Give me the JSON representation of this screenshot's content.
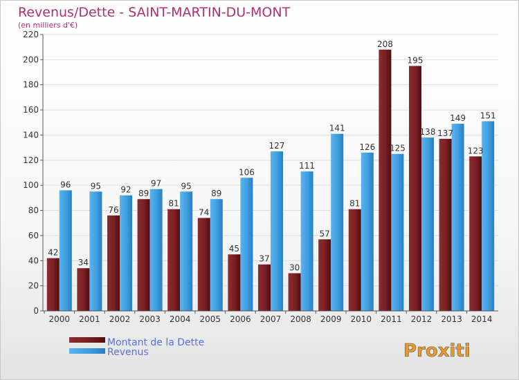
{
  "colors": {
    "title": "#b0306e",
    "dette": "#7a1f22",
    "revenus": "#3d9ee0",
    "legend_text": "#5a70e0",
    "axis_text": "#333333",
    "grid": "#dddddd"
  },
  "branding": {
    "logo_text": "Proxiti"
  },
  "chart_data": {
    "type": "bar",
    "title": "Revenus/Dette - SAINT-MARTIN-DU-MONT",
    "subtitle": "(en milliers d'€)",
    "categories": [
      "2000",
      "2001",
      "2002",
      "2003",
      "2004",
      "2005",
      "2006",
      "2007",
      "2008",
      "2009",
      "2010",
      "2011",
      "2012",
      "2013",
      "2014"
    ],
    "series": [
      {
        "name": "Montant de la Dette",
        "values": [
          42,
          34,
          76,
          89,
          81,
          74,
          45,
          37,
          30,
          57,
          81,
          208,
          195,
          137,
          123
        ]
      },
      {
        "name": "Revenus",
        "values": [
          96,
          95,
          92,
          97,
          95,
          89,
          106,
          127,
          111,
          141,
          126,
          125,
          138,
          149,
          151
        ]
      }
    ],
    "ylim": [
      0,
      220
    ],
    "yticks": [
      0,
      20,
      40,
      60,
      80,
      100,
      120,
      140,
      160,
      180,
      200,
      220
    ],
    "grid": true,
    "legend_position": "bottom-left"
  }
}
